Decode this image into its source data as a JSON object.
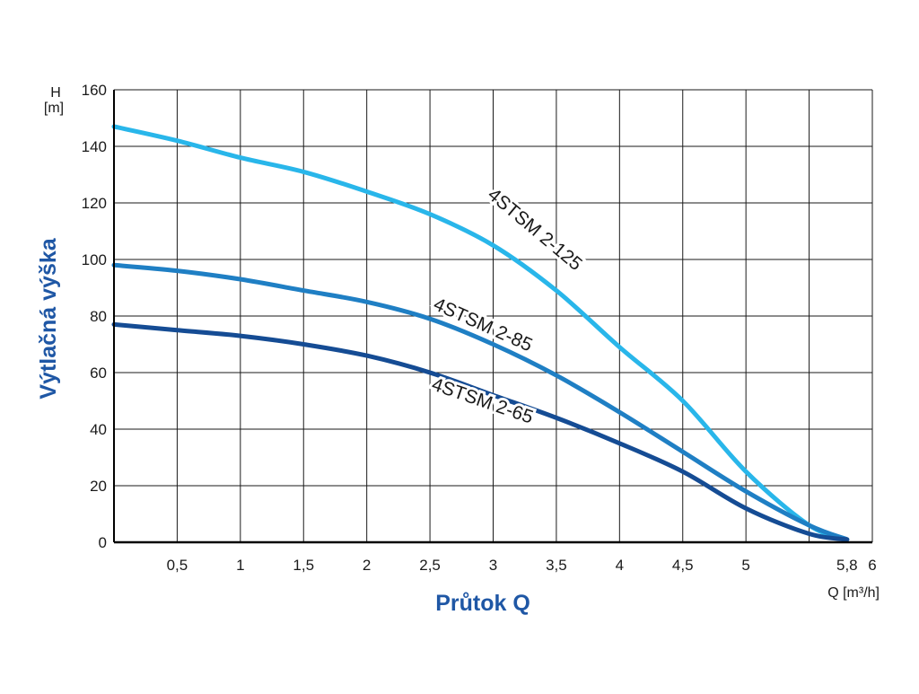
{
  "chart_data": {
    "type": "line",
    "xlabel": "Průtok Q",
    "ylabel": "Výtlačná výška",
    "x_unit": "Q [m³/h]",
    "y_unit_symbol": "H",
    "y_unit": "[m]",
    "xlim": [
      0,
      6
    ],
    "ylim": [
      0,
      160
    ],
    "grid": true,
    "x_ticks": [
      {
        "value": 0.5,
        "label": "0,5"
      },
      {
        "value": 1,
        "label": "1"
      },
      {
        "value": 1.5,
        "label": "1,5"
      },
      {
        "value": 2,
        "label": "2"
      },
      {
        "value": 2.5,
        "label": "2,5"
      },
      {
        "value": 3,
        "label": "3"
      },
      {
        "value": 3.5,
        "label": "3,5"
      },
      {
        "value": 4,
        "label": "4"
      },
      {
        "value": 4.5,
        "label": "4,5"
      },
      {
        "value": 5,
        "label": "5"
      },
      {
        "value": 5.8,
        "label": "5,8"
      },
      {
        "value": 6,
        "label": "6"
      }
    ],
    "y_ticks": [
      {
        "value": 0,
        "label": "0"
      },
      {
        "value": 20,
        "label": "20"
      },
      {
        "value": 40,
        "label": "40"
      },
      {
        "value": 60,
        "label": "60"
      },
      {
        "value": 80,
        "label": "80"
      },
      {
        "value": 100,
        "label": "100"
      },
      {
        "value": 120,
        "label": "120"
      },
      {
        "value": 140,
        "label": "140"
      },
      {
        "value": 160,
        "label": "160"
      }
    ],
    "series": [
      {
        "name": "4STSM 2-125",
        "color": "#29b6ea",
        "label_at": [
          3.3,
          109
        ],
        "label_angle": 40,
        "points": [
          [
            0,
            147
          ],
          [
            0.5,
            142
          ],
          [
            1,
            136
          ],
          [
            1.5,
            131
          ],
          [
            2,
            124
          ],
          [
            2.5,
            116
          ],
          [
            3,
            105
          ],
          [
            3.5,
            89
          ],
          [
            4,
            69
          ],
          [
            4.5,
            50
          ],
          [
            5,
            25
          ],
          [
            5.5,
            6
          ],
          [
            5.8,
            1
          ]
        ]
      },
      {
        "name": "4STSM 2-85",
        "color": "#1f7fc4",
        "label_at": [
          2.9,
          75
        ],
        "label_angle": 24,
        "points": [
          [
            0,
            98
          ],
          [
            0.5,
            96
          ],
          [
            1,
            93
          ],
          [
            1.5,
            89
          ],
          [
            2,
            85
          ],
          [
            2.5,
            79
          ],
          [
            3,
            70
          ],
          [
            3.5,
            59
          ],
          [
            4,
            46
          ],
          [
            4.5,
            32
          ],
          [
            5,
            18
          ],
          [
            5.5,
            6
          ],
          [
            5.8,
            1
          ]
        ]
      },
      {
        "name": "4STSM 2-65",
        "color": "#154c94",
        "label_at": [
          2.9,
          48
        ],
        "label_angle": 19,
        "points": [
          [
            0,
            77
          ],
          [
            0.5,
            75
          ],
          [
            1,
            73
          ],
          [
            1.5,
            70
          ],
          [
            2,
            66
          ],
          [
            2.5,
            60
          ],
          [
            3,
            52
          ],
          [
            3.5,
            44
          ],
          [
            4,
            35
          ],
          [
            4.5,
            25
          ],
          [
            5,
            12
          ],
          [
            5.5,
            3
          ],
          [
            5.8,
            1
          ]
        ]
      }
    ]
  }
}
